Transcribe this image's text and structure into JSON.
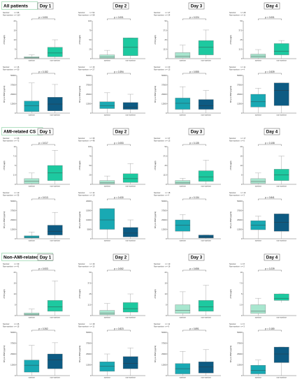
{
  "colors": {
    "survivor_top": "#a8e6cf",
    "nonsurvivor_top": "#1dc9a0",
    "survivor_bottom": "#19a9b3",
    "nonsurvivor_bottom": "#0d5b83",
    "section_border": "#9fd9b4",
    "day_border": "#555555"
  },
  "legend": {
    "survivor_label": "Survivor",
    "nonsurvivor_label": "Non-survivor"
  },
  "chart_data": [
    {
      "type": "box",
      "section": "All patients",
      "panels": [
        {
          "day": "Day 1",
          "top": {
            "ylabel": "cTNI (ug/l)",
            "p": "p < 0.001",
            "counts": [
              "n = 95",
              "n = 113"
            ],
            "categories": [
              "survivor",
              "non-survivor"
            ],
            "boxes": [
              {
                "min": 0,
                "q1": 0.2,
                "median": 0.5,
                "q3": 1.0,
                "max": 2.0
              },
              {
                "min": 0,
                "q1": 1.0,
                "median": 3.0,
                "q3": 6.0,
                "max": 10.0
              }
            ]
          },
          "bottom": {
            "ylabel": "NT-pro BNP (pg/ml)",
            "p": "p = 0.152",
            "counts": [
              "n = 16",
              "n = 50"
            ],
            "categories": [
              "survivor",
              "non-survivor"
            ],
            "boxes": [
              {
                "min": 0,
                "q1": 2000,
                "median": 10000,
                "q3": 16000,
                "max": 40000
              },
              {
                "min": 0,
                "q1": 3000,
                "median": 12000,
                "q3": 21000,
                "max": 38000
              }
            ]
          }
        },
        {
          "day": "Day 2",
          "top": {
            "ylabel": "cTNI (ug/l)",
            "p": "p < 0.001",
            "counts": [
              "n = 52",
              "n = 58"
            ],
            "categories": [
              "survivor",
              "non-survivor"
            ],
            "boxes": [
              {
                "min": 0,
                "q1": 1,
                "median": 4,
                "q3": 10,
                "max": 22
              },
              {
                "min": 0,
                "q1": 8,
                "median": 30,
                "q3": 55,
                "max": 55
              }
            ]
          },
          "bottom": {
            "ylabel": "NT-pro BNP (pg/ml)",
            "p": "p = 0.394",
            "counts": [
              "n = 16",
              "n = 27"
            ],
            "categories": [
              "survivor",
              "non-survivor"
            ],
            "boxes": [
              {
                "min": 0,
                "q1": 6000,
                "median": 10000,
                "q3": 15000,
                "max": 27000
              },
              {
                "min": 0,
                "q1": 5000,
                "median": 8000,
                "q3": 14000,
                "max": 25000
              }
            ]
          }
        },
        {
          "day": "Day 3",
          "top": {
            "ylabel": "cTNI (ug/l)",
            "p": "p = 0.224",
            "counts": [
              "n = 47",
              "n = 24"
            ],
            "categories": [
              "survivor",
              "non-survivor"
            ],
            "boxes": [
              {
                "min": 0,
                "q1": 1,
                "median": 3,
                "q3": 8,
                "max": 18
              },
              {
                "min": 0,
                "q1": 5,
                "median": 15,
                "q3": 24,
                "max": 38
              }
            ]
          },
          "bottom": {
            "ylabel": "NT-pro BNP (pg/ml)",
            "p": "p = 0.555",
            "counts": [
              "n = 23",
              "n = 13"
            ],
            "categories": [
              "survivor",
              "non-survivor"
            ],
            "boxes": [
              {
                "min": 0,
                "q1": 5000,
                "median": 13000,
                "q3": 20000,
                "max": 35000
              },
              {
                "min": 0,
                "q1": 5000,
                "median": 10000,
                "q3": 18000,
                "max": 30000
              }
            ]
          }
        },
        {
          "day": "Day 4",
          "top": {
            "ylabel": "cTNI (ug/l)",
            "p": "p < 0.001",
            "counts": [
              "n = 28",
              "n = 11"
            ],
            "categories": [
              "survivor",
              "non-survivor"
            ],
            "boxes": [
              {
                "min": 0,
                "q1": 1,
                "median": 3,
                "q3": 6,
                "max": 12
              },
              {
                "min": 0,
                "q1": 5,
                "median": 10,
                "q3": 20,
                "max": 24
              }
            ]
          },
          "bottom": {
            "ylabel": "NT-pro BNP (pg/ml)",
            "p": "p = 0.539",
            "counts": [
              "n = 11",
              "n = 4"
            ],
            "categories": [
              "survivor",
              "non-survivor"
            ],
            "boxes": [
              {
                "min": 0,
                "q1": 8000,
                "median": 15000,
                "q3": 25000,
                "max": 33000
              },
              {
                "min": 0,
                "q1": 10000,
                "median": 30000,
                "q3": 40000,
                "max": 40000
              }
            ]
          }
        }
      ]
    },
    {
      "type": "box",
      "section": "AMI-related CS",
      "panels": [
        {
          "day": "Day 1",
          "top": {
            "ylabel": "cTNI (ug/l)",
            "p": "p = 0.017",
            "counts": [
              "n = 65",
              "n = 72"
            ],
            "categories": [
              "survivor",
              "non-survivor"
            ],
            "boxes": [
              {
                "min": 0,
                "q1": 0.2,
                "median": 0.8,
                "q3": 1.5,
                "max": 3
              },
              {
                "min": 0,
                "q1": 1,
                "median": 3,
                "q3": 5,
                "max": 9
              }
            ]
          },
          "bottom": {
            "ylabel": "NT-pro BNP (pg/ml)",
            "p": "p = 0.013",
            "counts": [
              "n = 10",
              "n = 35"
            ],
            "categories": [
              "survivor",
              "non-survivor"
            ],
            "boxes": [
              {
                "min": 0,
                "q1": 1000,
                "median": 2500,
                "q3": 4000,
                "max": 9000
              },
              {
                "min": 0,
                "q1": 5000,
                "median": 10000,
                "q3": 18000,
                "max": 35000
              }
            ]
          }
        },
        {
          "day": "Day 2",
          "top": {
            "ylabel": "cTNI (ug/l)",
            "p": "p = 0.053",
            "counts": [
              "n = 35",
              "n = 48"
            ],
            "categories": [
              "survivor",
              "non-survivor"
            ],
            "boxes": [
              {
                "min": 0,
                "q1": 1,
                "median": 4,
                "q3": 10,
                "max": 22
              },
              {
                "min": 0,
                "q1": 5,
                "median": 15,
                "q3": 28,
                "max": 55
              }
            ]
          },
          "bottom": {
            "ylabel": "NT-pro BNP (pg/ml)",
            "p": "p = 0.430",
            "counts": [
              "n = 14",
              "n = 10"
            ],
            "categories": [
              "survivor",
              "non-survivor"
            ],
            "boxes": [
              {
                "min": 0,
                "q1": 5000,
                "median": 10000,
                "q3": 16000,
                "max": 16000
              },
              {
                "min": 0,
                "q1": 1000,
                "median": 3000,
                "q3": 6000,
                "max": 10000
              }
            ]
          }
        },
        {
          "day": "Day 3",
          "top": {
            "ylabel": "cTNI (ug/l)",
            "p": "p = 0.135",
            "counts": [
              "n = 37",
              "n = 13"
            ],
            "categories": [
              "survivor",
              "non-survivor"
            ],
            "boxes": [
              {
                "min": 0,
                "q1": 0.5,
                "median": 2,
                "q3": 5,
                "max": 8
              },
              {
                "min": 0,
                "q1": 4,
                "median": 10,
                "q3": 18,
                "max": 32
              }
            ]
          },
          "bottom": {
            "ylabel": "NT-pro BNP (pg/ml)",
            "p": "p = 0.134",
            "counts": [
              "n = 18",
              "n = 4"
            ],
            "categories": [
              "survivor",
              "non-survivor"
            ],
            "boxes": [
              {
                "min": 0,
                "q1": 10000,
                "median": 18000,
                "q3": 25000,
                "max": 32000
              },
              {
                "min": 0,
                "q1": 1000,
                "median": 2500,
                "q3": 5000,
                "max": 5000
              }
            ]
          }
        },
        {
          "day": "Day 4",
          "top": {
            "ylabel": "cTNI (ug/l)",
            "p": "p = 0.108",
            "counts": [
              "n = 17",
              "n = 6"
            ],
            "categories": [
              "survivor",
              "non-survivor"
            ],
            "boxes": [
              {
                "min": 0,
                "q1": 0.5,
                "median": 1.5,
                "q3": 3,
                "max": 6
              },
              {
                "min": 0,
                "q1": 2,
                "median": 5,
                "q3": 8,
                "max": 15
              }
            ]
          },
          "bottom": {
            "ylabel": "NT-pro BNP (pg/ml)",
            "p": "p = 0.841",
            "counts": [
              "n = 10",
              "n = 3"
            ],
            "categories": [
              "survivor",
              "non-survivor"
            ],
            "boxes": [
              {
                "min": 0,
                "q1": 12000,
                "median": 18000,
                "q3": 24000,
                "max": 30000
              },
              {
                "min": 0,
                "q1": 10000,
                "median": 22000,
                "q3": 33000,
                "max": 33000
              }
            ]
          }
        }
      ]
    },
    {
      "type": "box",
      "section": "Non-AMI-related CS",
      "panels": [
        {
          "day": "Day 1",
          "top": {
            "ylabel": "cTNI (ug/l)",
            "p": "p = 0.003",
            "counts": [
              "n = 30",
              "n = 41"
            ],
            "categories": [
              "survivor",
              "non-survivor"
            ],
            "boxes": [
              {
                "min": 0,
                "q1": 0.2,
                "median": 0.6,
                "q3": 1.2,
                "max": 3
              },
              {
                "min": 0,
                "q1": 2,
                "median": 4,
                "q3": 7,
                "max": 16
              }
            ]
          },
          "bottom": {
            "ylabel": "NT-pro BNP (pg/ml)",
            "p": "p = 0.262",
            "counts": [
              "n = 26",
              "n = 15"
            ],
            "categories": [
              "survivor",
              "non-survivor"
            ],
            "boxes": [
              {
                "min": 0,
                "q1": 4000,
                "median": 12000,
                "q3": 18000,
                "max": 35000
              },
              {
                "min": 0,
                "q1": 8000,
                "median": 18000,
                "q3": 25000,
                "max": 38000
              }
            ]
          }
        },
        {
          "day": "Day 2",
          "top": {
            "ylabel": "cTNI (ug/l)",
            "p": "p = 0.062",
            "counts": [
              "n = 16",
              "n = 10"
            ],
            "categories": [
              "survivor",
              "non-survivor"
            ],
            "boxes": [
              {
                "min": 0,
                "q1": 1,
                "median": 3,
                "q3": 6,
                "max": 14
              },
              {
                "min": 0,
                "q1": 4,
                "median": 8,
                "q3": 15,
                "max": 25
              }
            ]
          },
          "bottom": {
            "ylabel": "NT-pro BNP (pg/ml)",
            "p": "p = 0.823",
            "counts": [
              "n = 18",
              "n = 11"
            ],
            "categories": [
              "survivor",
              "non-survivor"
            ],
            "boxes": [
              {
                "min": 0,
                "q1": 5000,
                "median": 11000,
                "q3": 16000,
                "max": 25000
              },
              {
                "min": 0,
                "q1": 8000,
                "median": 14000,
                "q3": 22000,
                "max": 32000
              }
            ]
          }
        },
        {
          "day": "Day 3",
          "top": {
            "ylabel": "cTNI (ug/l)",
            "p": "p = 0.656",
            "counts": [
              "n = 10",
              "n = 16"
            ],
            "categories": [
              "survivor",
              "non-survivor"
            ],
            "boxes": [
              {
                "min": 0,
                "q1": 1,
                "median": 2.5,
                "q3": 5,
                "max": 11
              },
              {
                "min": 0,
                "q1": 2,
                "median": 4,
                "q3": 7,
                "max": 14
              }
            ]
          },
          "bottom": {
            "ylabel": "NT-pro BNP (pg/ml)",
            "p": "p = 0.891",
            "counts": [
              "n = 11",
              "n = 9"
            ],
            "categories": [
              "survivor",
              "non-survivor"
            ],
            "boxes": [
              {
                "min": 0,
                "q1": 2000,
                "median": 8000,
                "q3": 14000,
                "max": 28000
              },
              {
                "min": 0,
                "q1": 3000,
                "median": 10000,
                "q3": 16000,
                "max": 30000
              }
            ]
          }
        },
        {
          "day": "Day 4",
          "top": {
            "ylabel": "cTNI (ug/l)",
            "p": "p = 0.239",
            "counts": [
              "n = 8",
              "n = 2"
            ],
            "categories": [
              "survivor",
              "non-survivor"
            ],
            "boxes": [
              {
                "min": 0,
                "q1": 0.5,
                "median": 1,
                "q3": 2.5,
                "max": 4
              },
              {
                "min": 3,
                "q1": 3.5,
                "median": 4,
                "q3": 5,
                "max": 5
              }
            ]
          },
          "bottom": {
            "ylabel": "NT-pro BNP (pg/ml)",
            "p": "p = 0.180",
            "counts": [
              "n = 6",
              "n = 3"
            ],
            "categories": [
              "survivor",
              "non-survivor"
            ],
            "boxes": [
              {
                "min": 0,
                "q1": 2000,
                "median": 6000,
                "q3": 12000,
                "max": 18000
              },
              {
                "min": 0,
                "q1": 15000,
                "median": 25000,
                "q3": 33000,
                "max": 33000
              }
            ]
          }
        }
      ]
    }
  ]
}
